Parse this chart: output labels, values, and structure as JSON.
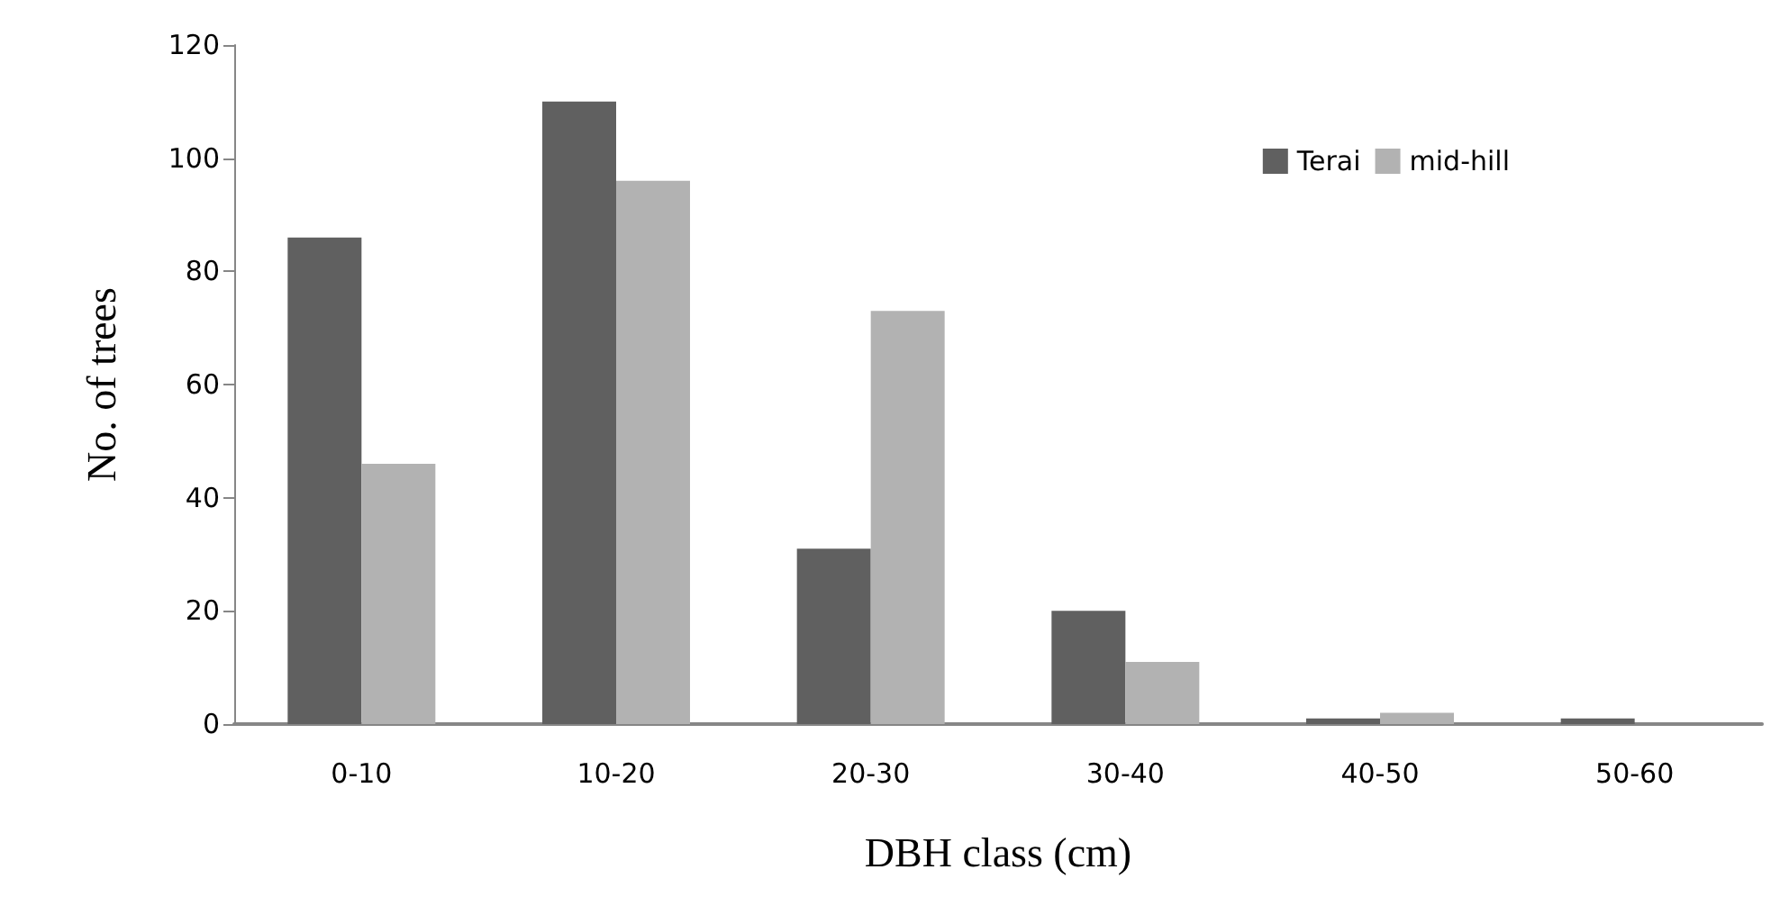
{
  "chart_data": {
    "type": "bar",
    "xlabel": "DBH class (cm)",
    "ylabel": "No. of trees",
    "categories": [
      "0-10",
      "10-20",
      "20-30",
      "30-40",
      "40-50",
      "50-60"
    ],
    "series": [
      {
        "name": "Terai",
        "color": "#606060",
        "values": [
          86,
          110,
          31,
          20,
          1,
          1
        ]
      },
      {
        "name": "mid-hill",
        "color": "#b2b2b2",
        "values": [
          46,
          96,
          73,
          11,
          2,
          0
        ]
      }
    ],
    "ylim": [
      0,
      120
    ],
    "yticks": [
      0,
      20,
      40,
      60,
      80,
      100,
      120
    ],
    "grid": false,
    "legend": "top right"
  }
}
